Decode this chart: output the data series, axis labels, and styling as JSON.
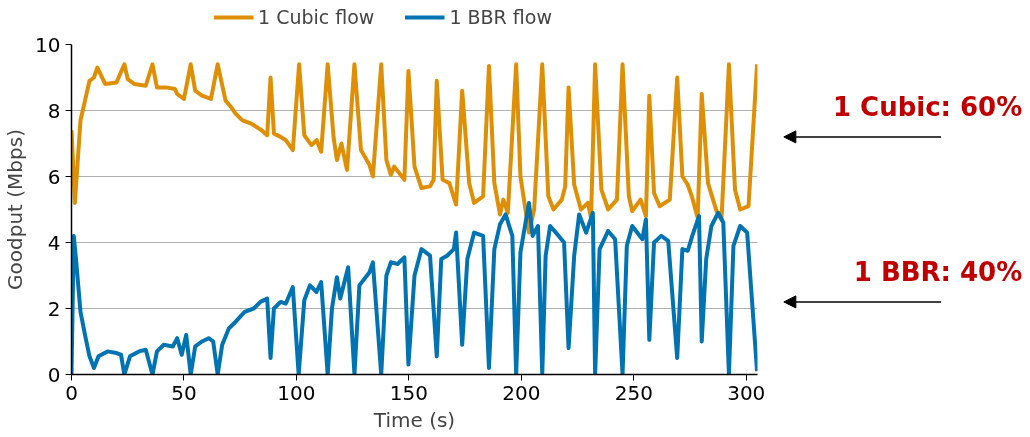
{
  "chart_data": {
    "type": "line",
    "xlabel": "Time (s)",
    "ylabel": "Goodput (Mbps)",
    "xlim": [
      0,
      305
    ],
    "ylim": [
      0,
      10
    ],
    "xticks": [
      0,
      50,
      100,
      150,
      200,
      250,
      300
    ],
    "yticks": [
      0,
      2,
      4,
      6,
      8,
      10
    ],
    "grid": "y",
    "legend": "top",
    "line_style": "solid",
    "marker": "none",
    "annotations": [
      "1 Cubic: 60%",
      "1 BBR: 40%"
    ],
    "series": [
      {
        "name": "1 Cubic flow",
        "color": "#de8f05",
        "x": [
          0,
          1.5,
          4,
          8,
          10,
          11.5,
          15,
          20,
          23.5,
          25,
          28,
          33,
          36,
          38,
          42,
          46,
          47,
          50,
          53,
          55,
          58,
          62,
          65,
          68.5,
          71,
          73,
          76,
          80,
          84.5,
          87,
          88.5,
          90,
          93,
          95.3,
          98.4,
          101.2,
          103.5,
          106.7,
          109,
          111,
          113.9,
          116.5,
          118,
          120,
          122.5,
          125.8,
          128.7,
          132.5,
          134,
          137.7,
          140,
          142,
          143.5,
          148,
          149.8,
          152.5,
          155.6,
          159.4,
          161,
          162.4,
          165,
          168,
          171,
          173.7,
          176.8,
          179,
          183,
          185.6,
          188,
          190.5,
          192,
          194,
          197.7,
          199.6,
          203.4,
          205.7,
          209.3,
          212,
          214.3,
          218,
          219.5,
          221,
          223.5,
          226.5,
          229.6,
          231,
          232.8,
          235.6,
          238.6,
          242.5,
          245,
          247.8,
          249.3,
          253,
          255.4,
          256.9,
          259,
          261.5,
          266,
          269.3,
          271.6,
          274,
          276,
          278.4,
          280.2,
          283,
          286.8,
          289,
          292.3,
          295,
          297.3,
          301,
          304.8
        ],
        "values": [
          7.4,
          5.2,
          7.7,
          8.9,
          9.0,
          9.3,
          8.8,
          8.85,
          9.4,
          8.95,
          8.8,
          8.75,
          9.4,
          8.7,
          8.7,
          8.65,
          8.5,
          8.35,
          9.4,
          8.6,
          8.45,
          8.35,
          9.4,
          8.3,
          8.1,
          7.9,
          7.7,
          7.6,
          7.4,
          7.25,
          9.0,
          7.3,
          7.2,
          7.1,
          6.8,
          9.4,
          7.25,
          6.95,
          7.1,
          6.75,
          9.4,
          7.2,
          6.5,
          7.0,
          6.2,
          9.4,
          6.8,
          6.35,
          6.0,
          9.4,
          6.5,
          6.05,
          6.3,
          5.9,
          9.2,
          6.3,
          5.65,
          5.7,
          5.9,
          8.9,
          5.9,
          5.8,
          5.15,
          8.6,
          5.8,
          5.2,
          5.4,
          9.35,
          5.8,
          4.85,
          5.3,
          4.9,
          9.4,
          6.0,
          4.3,
          5.0,
          9.4,
          5.4,
          5.0,
          5.3,
          5.7,
          8.7,
          5.75,
          5.0,
          5.2,
          4.75,
          9.4,
          5.6,
          5.0,
          5.3,
          9.4,
          5.4,
          4.95,
          5.3,
          4.8,
          8.45,
          5.5,
          5.1,
          5.3,
          9.0,
          6.0,
          5.75,
          5.35,
          4.75,
          8.5,
          5.8,
          4.95,
          4.7,
          9.4,
          5.6,
          5.0,
          5.1,
          9.4
        ]
      },
      {
        "name": "1 BBR flow",
        "color": "#0173b2",
        "x": [
          0,
          1,
          2,
          4,
          6,
          8,
          10,
          12,
          16,
          20,
          22,
          23.5,
          26,
          30,
          33,
          36,
          38,
          41,
          45,
          47,
          49,
          51,
          53,
          55,
          58,
          61,
          63,
          65,
          67,
          70,
          73,
          77,
          81,
          84,
          87,
          88.5,
          90,
          93,
          95.3,
          98.4,
          101,
          103.5,
          106,
          108.9,
          111,
          113.9,
          115.8,
          118,
          119.5,
          123,
          125.8,
          128,
          132.5,
          134,
          137.7,
          140,
          142,
          145,
          148,
          149.8,
          152.5,
          155.6,
          159.4,
          162.4,
          164.4,
          167,
          170,
          171,
          173.7,
          176,
          179,
          183,
          185.6,
          188,
          190.5,
          193,
          196,
          197.7,
          199.6,
          203.4,
          205,
          207.4,
          209.3,
          210.8,
          212.8,
          216.6,
          219,
          221,
          223.5,
          225.7,
          228.8,
          231.8,
          232.8,
          234.8,
          238.6,
          241.7,
          245,
          246.9,
          249.3,
          253.8,
          255.4,
          256.9,
          259,
          262.2,
          265.3,
          269.3,
          271.6,
          274,
          276,
          279,
          280.2,
          282.2,
          284.5,
          287.5,
          289.8,
          292.3,
          294.3,
          297.3,
          300.4,
          304.8
        ],
        "values": [
          0,
          4.2,
          3.5,
          1.9,
          1.2,
          0.55,
          0.2,
          0.55,
          0.7,
          0.65,
          0.6,
          0,
          0.55,
          0.7,
          0.75,
          0,
          0.7,
          0.9,
          0.85,
          1.1,
          0.6,
          1.2,
          0,
          0.85,
          1.0,
          1.1,
          1.0,
          0,
          0.9,
          1.4,
          1.6,
          1.9,
          2.0,
          2.2,
          2.3,
          0.5,
          2.0,
          2.2,
          2.15,
          2.65,
          0,
          2.25,
          2.7,
          2.5,
          2.8,
          0,
          2.0,
          2.95,
          2.3,
          3.25,
          0,
          2.7,
          3.1,
          3.4,
          0,
          3.0,
          3.4,
          3.35,
          3.55,
          0.3,
          3.0,
          3.8,
          3.6,
          0.55,
          3.5,
          3.6,
          3.8,
          4.3,
          0.9,
          3.5,
          4.3,
          4.2,
          0.2,
          3.8,
          4.55,
          4.85,
          4.2,
          0,
          3.7,
          5.2,
          4.2,
          4.5,
          0,
          3.6,
          4.5,
          4.2,
          4.0,
          0.8,
          3.6,
          4.85,
          4.3,
          4.9,
          0,
          3.8,
          4.35,
          4.1,
          0,
          3.9,
          4.5,
          4.1,
          4.7,
          1.05,
          4.0,
          4.2,
          4.05,
          0.5,
          3.8,
          3.75,
          4.2,
          4.8,
          1.0,
          3.5,
          4.5,
          4.9,
          4.6,
          0,
          3.9,
          4.5,
          4.3,
          0.1
        ]
      }
    ]
  }
}
